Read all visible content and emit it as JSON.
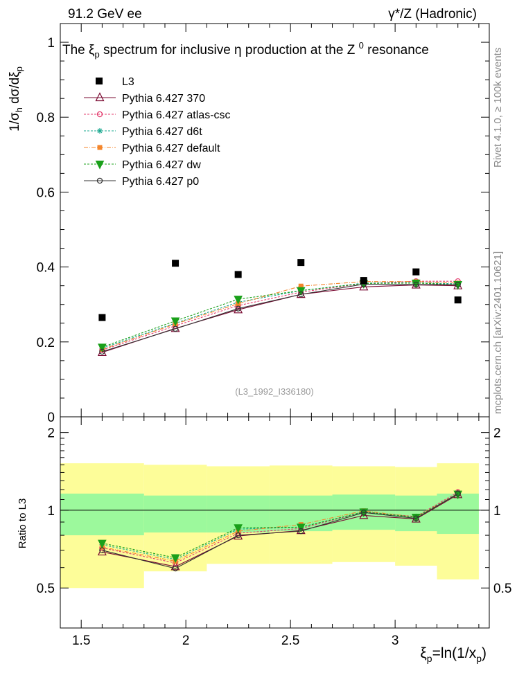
{
  "header": {
    "left": "91.2 GeV ee",
    "right": "γ*/Z (Hadronic)"
  },
  "side_labels": {
    "rivet": "Rivet 4.1.0, ≥ 100k events",
    "mcplots": "mcplots.cern.ch [arXiv:2401.10621]"
  },
  "chart_data": {
    "type": "scatter",
    "title": "The ξp spectrum for inclusive η production at the Z0 resonance",
    "title_parts": {
      "prefix": "The ξ",
      "xi_sub": "p",
      "middle": " spectrum for inclusive  η production at the Z ",
      "sup": "0",
      "suffix": " resonance"
    },
    "ylabel_parts": {
      "a": "1/σ",
      "a_sub": "h",
      "b": "  dσ/dξ",
      "b_sub": "p"
    },
    "xlabel_parts": {
      "a": "ξ",
      "a_sub": "p",
      "b": "=ln(1/x",
      "b_sub": "p",
      "c": ")"
    },
    "ratio_ylabel": "Ratio to L3",
    "watermark": "(L3_1992_I336180)",
    "xlim": [
      1.4,
      3.45
    ],
    "ylim_main": [
      0,
      1.05
    ],
    "ylim_ratio": [
      0.35,
      2.3
    ],
    "x_ticks": [
      {
        "value": 1.5,
        "label": "1.5"
      },
      {
        "value": 2,
        "label": "2"
      },
      {
        "value": 2.5,
        "label": "2.5"
      },
      {
        "value": 3,
        "label": "3"
      }
    ],
    "y_ticks_main": [
      {
        "value": 0,
        "label": "0"
      },
      {
        "value": 0.2,
        "label": "0.2"
      },
      {
        "value": 0.4,
        "label": "0.4"
      },
      {
        "value": 0.6,
        "label": "0.6"
      },
      {
        "value": 0.8,
        "label": "0.8"
      },
      {
        "value": 1,
        "label": "1"
      }
    ],
    "y_ticks_ratio": [
      {
        "value": 0.5,
        "label": "0.5"
      },
      {
        "value": 1,
        "label": "1"
      },
      {
        "value": 2,
        "label": "2"
      }
    ],
    "bins": [
      {
        "lo": 1.4,
        "hi": 1.8,
        "x": 1.6
      },
      {
        "lo": 1.8,
        "hi": 2.1,
        "x": 1.95
      },
      {
        "lo": 2.1,
        "hi": 2.4,
        "x": 2.25
      },
      {
        "lo": 2.4,
        "hi": 2.7,
        "x": 2.55
      },
      {
        "lo": 2.7,
        "hi": 3.0,
        "x": 2.85
      },
      {
        "lo": 3.0,
        "hi": 3.2,
        "x": 3.1
      },
      {
        "lo": 3.2,
        "hi": 3.4,
        "x": 3.3
      }
    ],
    "data_series": {
      "name": "L3",
      "x": [
        1.6,
        1.95,
        2.25,
        2.55,
        2.85,
        3.1,
        3.3
      ],
      "y": [
        0.265,
        0.41,
        0.38,
        0.412,
        0.364,
        0.387,
        0.312
      ]
    },
    "uncertainty_bands": {
      "inner": [
        [
          0.8,
          1.16
        ],
        [
          0.82,
          1.14
        ],
        [
          0.82,
          1.14
        ],
        [
          0.83,
          1.14
        ],
        [
          0.84,
          1.15
        ],
        [
          0.83,
          1.14
        ],
        [
          0.81,
          1.16
        ]
      ],
      "outer": [
        [
          0.5,
          1.52
        ],
        [
          0.58,
          1.5
        ],
        [
          0.62,
          1.48
        ],
        [
          0.62,
          1.49
        ],
        [
          0.63,
          1.48
        ],
        [
          0.61,
          1.47
        ],
        [
          0.54,
          1.52
        ]
      ]
    },
    "series": [
      {
        "name": "Pythia 6.427 370",
        "color": "#7a0a32",
        "dash": "",
        "marker": "triangle",
        "values": [
          0.172,
          0.236,
          0.286,
          0.327,
          0.347,
          0.352,
          0.35
        ],
        "ratio": [
          0.69,
          0.605,
          0.795,
          0.835,
          0.955,
          0.925,
          1.15
        ]
      },
      {
        "name": "Pythia 6.427 atlas-csc",
        "color": "#e33c6e",
        "dash": "3,2",
        "marker": "circle",
        "values": [
          0.178,
          0.243,
          0.297,
          0.333,
          0.356,
          0.362,
          0.362
        ],
        "ratio": [
          0.715,
          0.625,
          0.815,
          0.85,
          0.985,
          0.945,
          1.175
        ]
      },
      {
        "name": "Pythia 6.427 d6t",
        "color": "#19a88f",
        "dash": "3,2",
        "marker": "star",
        "values": [
          0.183,
          0.25,
          0.306,
          0.337,
          0.357,
          0.358,
          0.355
        ],
        "ratio": [
          0.735,
          0.645,
          0.845,
          0.86,
          0.985,
          0.94,
          1.16
        ]
      },
      {
        "name": "Pythia 6.427 default",
        "color": "#f4862b",
        "dash": "6,2,1,2",
        "marker": "square",
        "values": [
          0.18,
          0.248,
          0.302,
          0.349,
          0.361,
          0.361,
          0.357
        ],
        "ratio": [
          0.72,
          0.635,
          0.83,
          0.88,
          0.995,
          0.94,
          1.16
        ]
      },
      {
        "name": "Pythia 6.427 dw",
        "color": "#1aa01a",
        "dash": "3,2",
        "marker": "triangle-down",
        "values": [
          0.186,
          0.256,
          0.314,
          0.337,
          0.356,
          0.357,
          0.353
        ],
        "ratio": [
          0.745,
          0.655,
          0.855,
          0.86,
          0.985,
          0.94,
          1.155
        ]
      },
      {
        "name": "Pythia 6.427 p0",
        "color": "#333333",
        "dash": "",
        "marker": "circle",
        "values": [
          0.174,
          0.235,
          0.289,
          0.327,
          0.354,
          0.353,
          0.353
        ],
        "ratio": [
          0.7,
          0.595,
          0.8,
          0.83,
          0.98,
          0.93,
          1.16
        ]
      }
    ]
  }
}
